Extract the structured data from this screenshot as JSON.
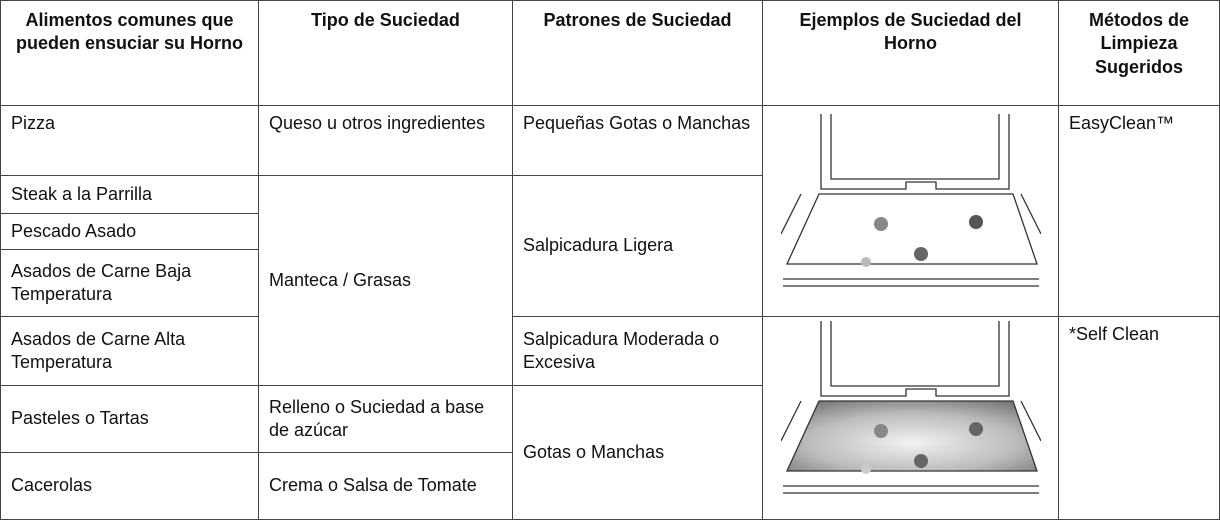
{
  "table": {
    "header": [
      "Alimentos comunes que pueden ensuciar su Horno",
      "Tipo de Suciedad",
      "Patrones de Suciedad",
      "Ejemplos de Suciedad del Horno",
      "Métodos de Limpieza Sugeridos"
    ],
    "rows": [
      [
        "Pizza",
        "Queso u otros ingredientes",
        "Pequeñas Gotas o Manchas",
        "EasyClean™"
      ],
      [
        "Steak a la Parrilla",
        "Manteca / Grasas",
        "Salpicadura Ligera"
      ],
      [
        "Pescado Asado"
      ],
      [
        "Asados de Carne Baja Temperatura"
      ],
      [
        "Asados de Carne Alta Temperatura",
        "Salpicadura Moderada o Excesiva",
        "*Self Clean"
      ],
      [
        "Pasteles o Tartas",
        "Relleno o Suciedad a base de azúcar",
        "Gotas o Manchas"
      ],
      [
        "Cacerolas",
        "Crema o Salsa de Tomate"
      ]
    ]
  }
}
